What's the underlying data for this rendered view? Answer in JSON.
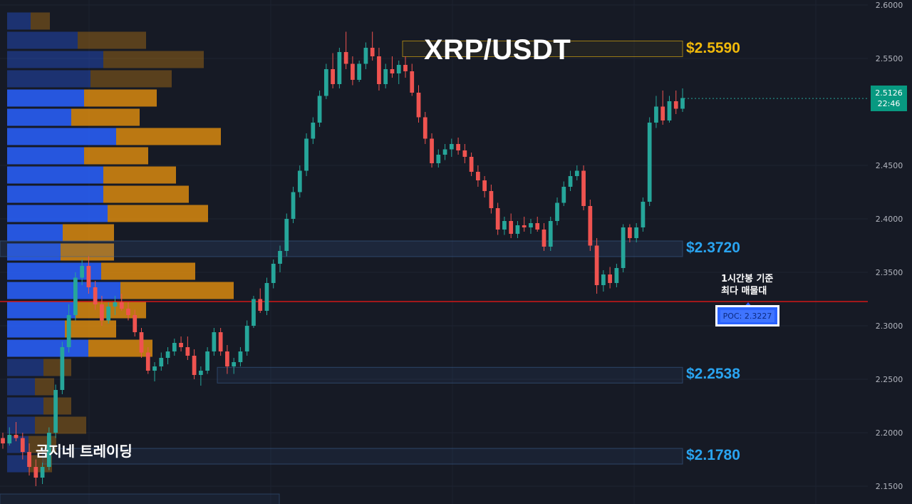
{
  "chart_data": {
    "type": "candlestick",
    "symbol_title": "XRP/USDT",
    "y_axis": {
      "ticks": [
        "2.6000",
        "2.5500",
        "2.4500",
        "2.4000",
        "2.3500",
        "2.3000",
        "2.2500",
        "2.2000",
        "2.1500"
      ],
      "range": [
        2.14,
        2.604
      ]
    },
    "current_price": {
      "value": "2.5126",
      "countdown": "22:46"
    },
    "levels": [
      {
        "label": "$2.5590",
        "value": 2.559,
        "color": "#f0b90b"
      },
      {
        "label": "$2.3720",
        "value": 2.372,
        "color": "#2aa4f0"
      },
      {
        "label": "$2.2538",
        "value": 2.2538,
        "color": "#2aa4f0"
      },
      {
        "label": "$2.1780",
        "value": 2.178,
        "color": "#2aa4f0"
      }
    ],
    "poc": {
      "label": "POC: 2.3227",
      "value": 2.3227,
      "note_line1": "1시간봉 기준",
      "note_line2": "최다 매물대"
    },
    "volume_profile": [
      {
        "price": 2.585,
        "buy": 0.11,
        "sell": 0.09,
        "faded": true
      },
      {
        "price": 2.567,
        "buy": 0.33,
        "sell": 0.32,
        "faded": true
      },
      {
        "price": 2.549,
        "buy": 0.45,
        "sell": 0.47,
        "faded": true
      },
      {
        "price": 2.531,
        "buy": 0.39,
        "sell": 0.38,
        "faded": true
      },
      {
        "price": 2.513,
        "buy": 0.36,
        "sell": 0.34
      },
      {
        "price": 2.495,
        "buy": 0.3,
        "sell": 0.32
      },
      {
        "price": 2.477,
        "buy": 0.51,
        "sell": 0.49
      },
      {
        "price": 2.459,
        "buy": 0.36,
        "sell": 0.3
      },
      {
        "price": 2.441,
        "buy": 0.45,
        "sell": 0.34
      },
      {
        "price": 2.423,
        "buy": 0.45,
        "sell": 0.4
      },
      {
        "price": 2.405,
        "buy": 0.47,
        "sell": 0.47
      },
      {
        "price": 2.387,
        "buy": 0.26,
        "sell": 0.24
      },
      {
        "price": 2.369,
        "buy": 0.25,
        "sell": 0.25
      },
      {
        "price": 2.351,
        "buy": 0.44,
        "sell": 0.44
      },
      {
        "price": 2.333,
        "buy": 0.53,
        "sell": 0.53
      },
      {
        "price": 2.315,
        "buy": 0.32,
        "sell": 0.33
      },
      {
        "price": 2.297,
        "buy": 0.27,
        "sell": 0.24
      },
      {
        "price": 2.279,
        "buy": 0.38,
        "sell": 0.3
      },
      {
        "price": 2.261,
        "buy": 0.17,
        "sell": 0.13,
        "faded": true
      },
      {
        "price": 2.243,
        "buy": 0.13,
        "sell": 0.09,
        "faded": true
      },
      {
        "price": 2.225,
        "buy": 0.17,
        "sell": 0.13,
        "faded": true
      },
      {
        "price": 2.207,
        "buy": 0.13,
        "sell": 0.24,
        "faded": true
      },
      {
        "price": 2.189,
        "buy": 0.1,
        "sell": 0.13,
        "faded": true
      },
      {
        "price": 2.171,
        "buy": 0.1,
        "sell": 0.11,
        "faded": true
      }
    ],
    "candles_ohlc": [
      [
        2.195,
        2.2,
        2.185,
        2.19
      ],
      [
        2.19,
        2.205,
        2.188,
        2.198
      ],
      [
        2.198,
        2.21,
        2.192,
        2.195
      ],
      [
        2.195,
        2.2,
        2.175,
        2.182
      ],
      [
        2.182,
        2.19,
        2.16,
        2.168
      ],
      [
        2.168,
        2.175,
        2.15,
        2.158
      ],
      [
        2.158,
        2.172,
        2.152,
        2.168
      ],
      [
        2.168,
        2.205,
        2.165,
        2.2
      ],
      [
        2.2,
        2.245,
        2.195,
        2.24
      ],
      [
        2.24,
        2.285,
        2.236,
        2.28
      ],
      [
        2.28,
        2.32,
        2.275,
        2.31
      ],
      [
        2.31,
        2.35,
        2.305,
        2.345
      ],
      [
        2.345,
        2.362,
        2.338,
        2.356
      ],
      [
        2.356,
        2.365,
        2.33,
        2.336
      ],
      [
        2.336,
        2.342,
        2.315,
        2.32
      ],
      [
        2.32,
        2.328,
        2.3,
        2.305
      ],
      [
        2.305,
        2.322,
        2.302,
        2.318
      ],
      [
        2.318,
        2.328,
        2.31,
        2.322
      ],
      [
        2.322,
        2.33,
        2.314,
        2.316
      ],
      [
        2.316,
        2.322,
        2.305,
        2.31
      ],
      [
        2.31,
        2.315,
        2.29,
        2.294
      ],
      [
        2.294,
        2.298,
        2.27,
        2.275
      ],
      [
        2.275,
        2.28,
        2.255,
        2.258
      ],
      [
        2.258,
        2.266,
        2.248,
        2.262
      ],
      [
        2.262,
        2.275,
        2.258,
        2.27
      ],
      [
        2.27,
        2.28,
        2.264,
        2.276
      ],
      [
        2.276,
        2.288,
        2.272,
        2.284
      ],
      [
        2.284,
        2.29,
        2.276,
        2.28
      ],
      [
        2.28,
        2.29,
        2.268,
        2.272
      ],
      [
        2.272,
        2.278,
        2.25,
        2.254
      ],
      [
        2.254,
        2.262,
        2.244,
        2.258
      ],
      [
        2.258,
        2.28,
        2.255,
        2.276
      ],
      [
        2.276,
        2.298,
        2.272,
        2.294
      ],
      [
        2.294,
        2.298,
        2.272,
        2.276
      ],
      [
        2.276,
        2.282,
        2.255,
        2.262
      ],
      [
        2.262,
        2.27,
        2.255,
        2.266
      ],
      [
        2.266,
        2.28,
        2.262,
        2.276
      ],
      [
        2.276,
        2.305,
        2.272,
        2.3
      ],
      [
        2.3,
        2.328,
        2.298,
        2.325
      ],
      [
        2.325,
        2.335,
        2.312,
        2.314
      ],
      [
        2.314,
        2.345,
        2.31,
        2.34
      ],
      [
        2.34,
        2.362,
        2.335,
        2.358
      ],
      [
        2.358,
        2.375,
        2.35,
        2.37
      ],
      [
        2.37,
        2.405,
        2.365,
        2.4
      ],
      [
        2.4,
        2.43,
        2.396,
        2.425
      ],
      [
        2.425,
        2.45,
        2.42,
        2.445
      ],
      [
        2.445,
        2.48,
        2.44,
        2.475
      ],
      [
        2.475,
        2.495,
        2.47,
        2.49
      ],
      [
        2.49,
        2.52,
        2.486,
        2.515
      ],
      [
        2.515,
        2.545,
        2.512,
        2.54
      ],
      [
        2.54,
        2.555,
        2.522,
        2.526
      ],
      [
        2.526,
        2.56,
        2.522,
        2.556
      ],
      [
        2.556,
        2.575,
        2.54,
        2.545
      ],
      [
        2.545,
        2.552,
        2.525,
        2.53
      ],
      [
        2.53,
        2.548,
        2.528,
        2.545
      ],
      [
        2.545,
        2.565,
        2.54,
        2.56
      ],
      [
        2.56,
        2.575,
        2.548,
        2.552
      ],
      [
        2.552,
        2.56,
        2.52,
        2.526
      ],
      [
        2.526,
        2.545,
        2.522,
        2.54
      ],
      [
        2.54,
        2.552,
        2.532,
        2.536
      ],
      [
        2.536,
        2.548,
        2.526,
        2.544
      ],
      [
        2.544,
        2.552,
        2.532,
        2.538
      ],
      [
        2.538,
        2.545,
        2.515,
        2.518
      ],
      [
        2.518,
        2.525,
        2.49,
        2.495
      ],
      [
        2.495,
        2.5,
        2.47,
        2.475
      ],
      [
        2.475,
        2.48,
        2.448,
        2.452
      ],
      [
        2.452,
        2.465,
        2.448,
        2.46
      ],
      [
        2.46,
        2.47,
        2.455,
        2.465
      ],
      [
        2.465,
        2.475,
        2.458,
        2.47
      ],
      [
        2.47,
        2.476,
        2.46,
        2.464
      ],
      [
        2.464,
        2.47,
        2.452,
        2.458
      ],
      [
        2.458,
        2.462,
        2.44,
        2.444
      ],
      [
        2.444,
        2.45,
        2.43,
        2.436
      ],
      [
        2.436,
        2.44,
        2.42,
        2.426
      ],
      [
        2.426,
        2.432,
        2.405,
        2.41
      ],
      [
        2.41,
        2.415,
        2.385,
        2.39
      ],
      [
        2.39,
        2.402,
        2.385,
        2.398
      ],
      [
        2.398,
        2.405,
        2.382,
        2.386
      ],
      [
        2.386,
        2.398,
        2.382,
        2.394
      ],
      [
        2.394,
        2.402,
        2.388,
        2.392
      ],
      [
        2.392,
        2.4,
        2.386,
        2.396
      ],
      [
        2.396,
        2.402,
        2.388,
        2.39
      ],
      [
        2.39,
        2.396,
        2.37,
        2.374
      ],
      [
        2.374,
        2.402,
        2.37,
        2.398
      ],
      [
        2.398,
        2.42,
        2.394,
        2.415
      ],
      [
        2.415,
        2.435,
        2.412,
        2.43
      ],
      [
        2.43,
        2.445,
        2.426,
        2.44
      ],
      [
        2.44,
        2.45,
        2.436,
        2.445
      ],
      [
        2.445,
        2.45,
        2.408,
        2.412
      ],
      [
        2.412,
        2.418,
        2.37,
        2.375
      ],
      [
        2.375,
        2.382,
        2.33,
        2.338
      ],
      [
        2.338,
        2.352,
        2.332,
        2.348
      ],
      [
        2.348,
        2.355,
        2.335,
        2.34
      ],
      [
        2.34,
        2.358,
        2.336,
        2.354
      ],
      [
        2.354,
        2.395,
        2.35,
        2.392
      ],
      [
        2.392,
        2.395,
        2.378,
        2.382
      ],
      [
        2.382,
        2.396,
        2.378,
        2.392
      ],
      [
        2.392,
        2.42,
        2.388,
        2.416
      ],
      [
        2.416,
        2.495,
        2.412,
        2.49
      ],
      [
        2.49,
        2.515,
        2.485,
        2.505
      ],
      [
        2.505,
        2.52,
        2.488,
        2.492
      ],
      [
        2.492,
        2.515,
        2.49,
        2.51
      ],
      [
        2.51,
        2.52,
        2.498,
        2.503
      ],
      [
        2.503,
        2.522,
        2.5,
        2.513
      ]
    ]
  },
  "brand": "곰지네 트레이딩"
}
